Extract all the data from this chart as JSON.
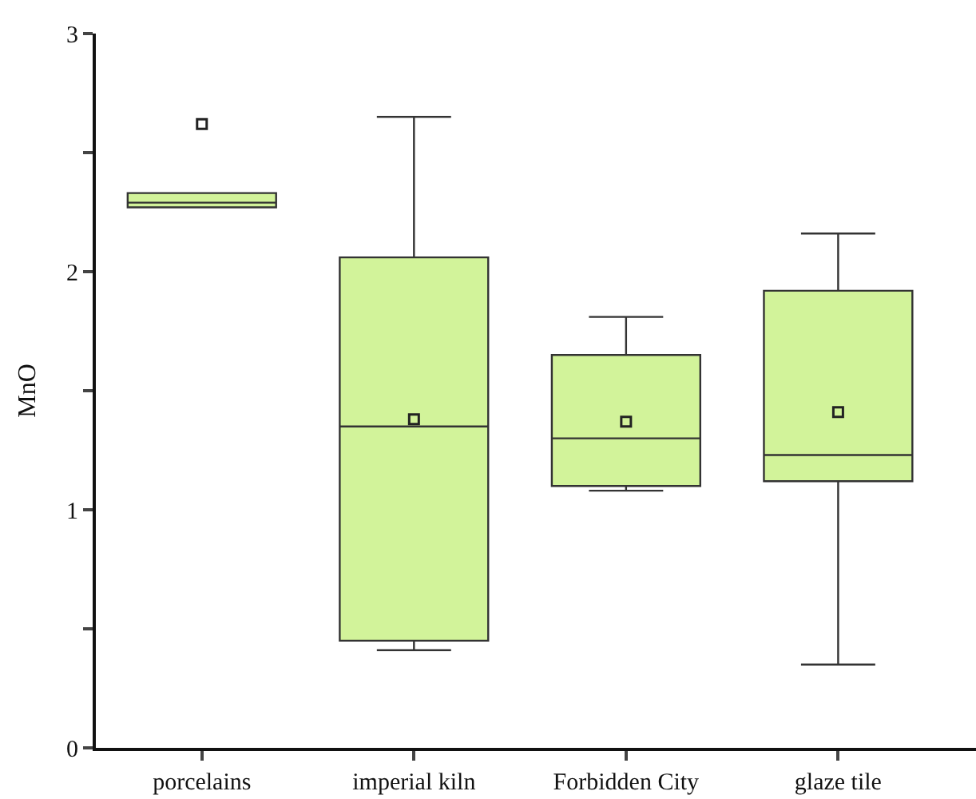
{
  "chart_data": {
    "type": "box",
    "ylabel": "MnO",
    "categories": [
      "porcelains",
      "imperial kiln",
      "Forbidden City",
      "glaze tile"
    ],
    "series": [
      {
        "color": "#d2f39a",
        "boxes": [
          {
            "low": 2.27,
            "q1": 2.27,
            "median": 2.29,
            "q3": 2.33,
            "high": 2.33,
            "mean": 2.62
          },
          {
            "low": 0.41,
            "q1": 0.45,
            "median": 1.35,
            "q3": 2.06,
            "high": 2.65,
            "mean": 1.38
          },
          {
            "low": 1.08,
            "q1": 1.1,
            "median": 1.3,
            "q3": 1.65,
            "high": 1.81,
            "mean": 1.37
          },
          {
            "low": 0.35,
            "q1": 1.12,
            "median": 1.23,
            "q3": 1.92,
            "high": 2.16,
            "mean": 1.41
          }
        ]
      }
    ],
    "ylim": [
      0,
      3
    ],
    "yticks": [
      0,
      {
        "value": 0.5,
        "label": null
      },
      1,
      {
        "value": 1.5,
        "label": null
      },
      2,
      {
        "value": 2.5,
        "label": null
      },
      3
    ],
    "marker": "square"
  }
}
